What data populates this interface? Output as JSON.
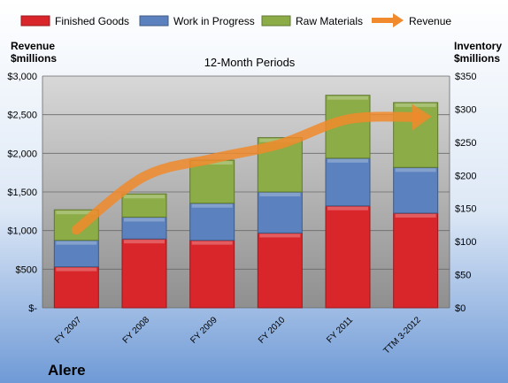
{
  "chart_data": {
    "type": "bar",
    "stacked": true,
    "subtitle": "12-Month Periods",
    "company": "Alere",
    "left_axis": {
      "label_line1": "Revenue",
      "label_line2": "$millions",
      "ylim": [
        0,
        3000
      ],
      "ticks": [
        0,
        500,
        1000,
        1500,
        2000,
        2500,
        3000
      ],
      "tick_labels": [
        "$-",
        "$500",
        "$1,000",
        "$1,500",
        "$2,000",
        "$2,500",
        "$3,000"
      ]
    },
    "right_axis": {
      "label_line1": "Inventory",
      "label_line2": "$millions",
      "ylim": [
        0,
        350
      ],
      "ticks": [
        0,
        50,
        100,
        150,
        200,
        250,
        300,
        350
      ],
      "tick_labels": [
        "$0",
        "$50",
        "$100",
        "$150",
        "$200",
        "$250",
        "$300",
        "$350"
      ]
    },
    "categories": [
      "FY 2007",
      "FY 2008",
      "FY 2009",
      "FY 2010",
      "FY 2011",
      "TTM 3-2012"
    ],
    "series": [
      {
        "name": "Finished Goods",
        "axis": "right",
        "color": "#d9262b",
        "values": [
          62,
          104,
          102,
          113,
          154,
          143
        ]
      },
      {
        "name": "Work in Progress",
        "axis": "right",
        "color": "#5b82be",
        "values": [
          40,
          33,
          56,
          62,
          72,
          69
        ]
      },
      {
        "name": "Raw Materials",
        "axis": "right",
        "color": "#8bac46",
        "values": [
          46,
          35,
          65,
          82,
          95,
          98
        ]
      }
    ],
    "line_series": {
      "name": "Revenue",
      "axis": "left",
      "color": "#f08a2c",
      "values": [
        1010,
        1700,
        1930,
        2120,
        2440,
        2470
      ]
    },
    "grid": true,
    "legend": "top"
  }
}
